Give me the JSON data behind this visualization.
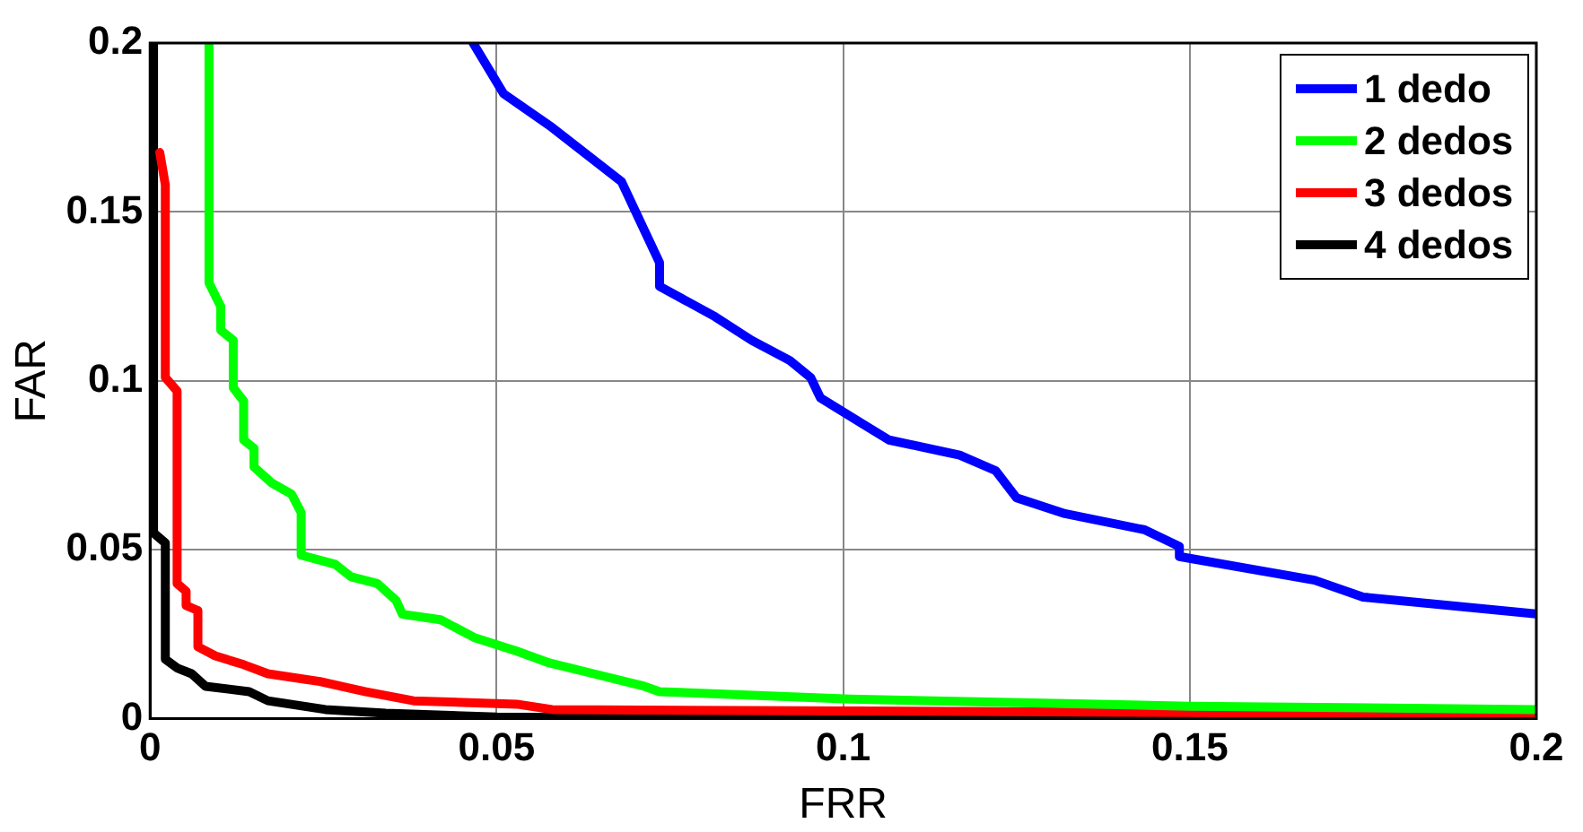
{
  "chart_data": {
    "type": "line",
    "xlabel": "FRR",
    "ylabel": "FAR",
    "xlim": [
      0,
      0.2
    ],
    "ylim": [
      0,
      0.2
    ],
    "xticks": [
      0,
      0.05,
      0.1,
      0.15,
      0.2
    ],
    "yticks": [
      0,
      0.05,
      0.1,
      0.15,
      0.2
    ],
    "grid": true,
    "legend": "top right",
    "marker": "none",
    "line_style": "solid",
    "series": [
      {
        "name": "1 dedo",
        "color": "#0000ff",
        "x": [
          0.0466,
          0.051,
          0.058,
          0.068,
          0.0735,
          0.0735,
          0.0815,
          0.0868,
          0.0923,
          0.0953,
          0.0967,
          0.103,
          0.1066,
          0.1168,
          0.122,
          0.125,
          0.132,
          0.1435,
          0.1485,
          0.1485,
          0.168,
          0.175,
          0.2
        ],
        "values": [
          0.2,
          0.185,
          0.175,
          0.159,
          0.135,
          0.128,
          0.119,
          0.112,
          0.106,
          0.101,
          0.095,
          0.087,
          0.0825,
          0.078,
          0.0734,
          0.0654,
          0.0607,
          0.0559,
          0.051,
          0.048,
          0.041,
          0.036,
          0.031
        ]
      },
      {
        "name": "2 dedos",
        "color": "#00ff00",
        "x": [
          0.0085,
          0.0085,
          0.0102,
          0.0102,
          0.012,
          0.012,
          0.0135,
          0.0135,
          0.015,
          0.015,
          0.0176,
          0.0204,
          0.0218,
          0.0218,
          0.0267,
          0.029,
          0.0328,
          0.0355,
          0.0364,
          0.0419,
          0.0468,
          0.0529,
          0.0576,
          0.064,
          0.0713,
          0.0735,
          0.101,
          0.15,
          0.2
        ],
        "values": [
          0.2,
          0.129,
          0.122,
          0.115,
          0.112,
          0.098,
          0.094,
          0.0825,
          0.08,
          0.0745,
          0.0697,
          0.0665,
          0.061,
          0.0484,
          0.0457,
          0.042,
          0.04,
          0.035,
          0.0309,
          0.0293,
          0.024,
          0.02,
          0.0165,
          0.0133,
          0.0096,
          0.008,
          0.0058,
          0.0037,
          0.0027
        ]
      },
      {
        "name": "3 dedos",
        "color": "#ff0000",
        "x": [
          0.0014,
          0.0022,
          0.0022,
          0.0039,
          0.0039,
          0.0052,
          0.0052,
          0.0069,
          0.0069,
          0.0094,
          0.0135,
          0.017,
          0.0245,
          0.031,
          0.038,
          0.0529,
          0.058,
          0.2
        ],
        "values": [
          0.1676,
          0.158,
          0.101,
          0.097,
          0.04,
          0.0377,
          0.0335,
          0.032,
          0.0213,
          0.0186,
          0.016,
          0.0133,
          0.011,
          0.008,
          0.0053,
          0.0043,
          0.0027,
          0.0013
        ]
      },
      {
        "name": "4 dedos",
        "color": "#000000",
        "x": [
          0.0005,
          0.0005,
          0.0022,
          0.0022,
          0.0039,
          0.006,
          0.008,
          0.0143,
          0.017,
          0.0253,
          0.034,
          0.05,
          0.2
        ],
        "values": [
          0.2,
          0.055,
          0.052,
          0.0176,
          0.015,
          0.0133,
          0.0096,
          0.008,
          0.0053,
          0.0027,
          0.0016,
          0.0005,
          0
        ]
      }
    ]
  }
}
